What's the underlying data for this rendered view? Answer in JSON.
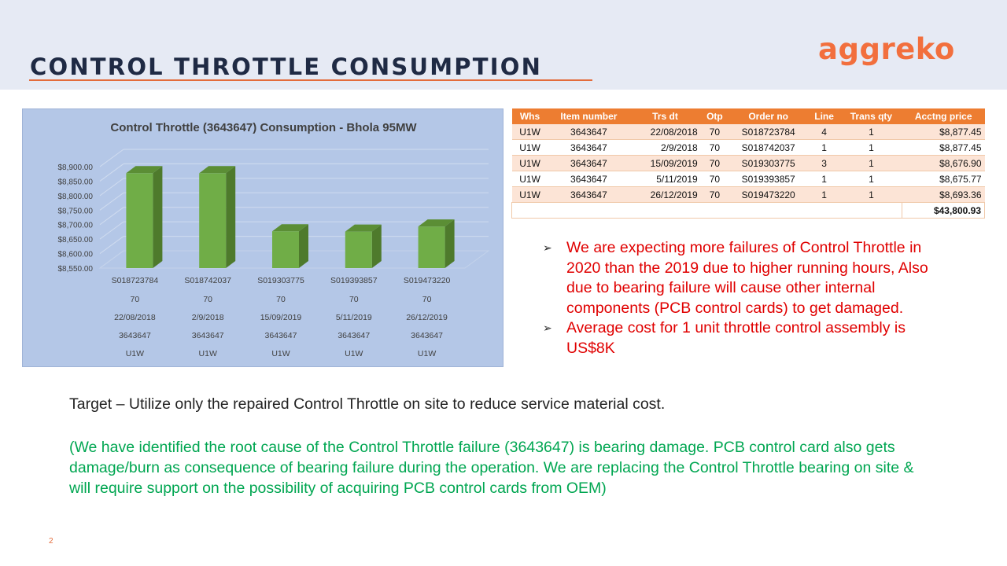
{
  "slide": {
    "title": "CONTROL THROTTLE CONSUMPTION",
    "logo_text": "aggreko",
    "page_number": "2",
    "accent_color": "#ed7d31",
    "title_color": "#1f2a44",
    "header_background": "#e6eaf4"
  },
  "chart_data": {
    "type": "bar",
    "title": "Control Throttle (3643647) Consumption - Bhola 95MW",
    "xlabel": "",
    "ylabel": "",
    "ylim": [
      8550,
      8900
    ],
    "yticks": [
      "$8,550.00",
      "$8,600.00",
      "$8,650.00",
      "$8,700.00",
      "$8,750.00",
      "$8,800.00",
      "$8,850.00",
      "$8,900.00"
    ],
    "category_levels": [
      [
        "S018723784",
        "S018742037",
        "S019303775",
        "S019393857",
        "S019473220"
      ],
      [
        "70",
        "70",
        "70",
        "70",
        "70"
      ],
      [
        "22/08/2018",
        "2/9/2018",
        "15/09/2019",
        "5/11/2019",
        "26/12/2019"
      ],
      [
        "3643647",
        "3643647",
        "3643647",
        "3643647",
        "3643647"
      ],
      [
        "U1W",
        "U1W",
        "U1W",
        "U1W",
        "U1W"
      ]
    ],
    "values": [
      8877.45,
      8877.45,
      8676.9,
      8675.77,
      8693.36
    ],
    "grid": true,
    "bar_color": "#70ad47",
    "background": "#b4c7e7"
  },
  "table": {
    "headers": [
      "Whs",
      "Item number",
      "Trs dt",
      "Otp",
      "Order no",
      "Line",
      "Trans qty",
      "Acctng price"
    ],
    "rows": [
      [
        "U1W",
        "3643647",
        "22/08/2018",
        "70",
        "S018723784",
        "4",
        "1",
        "$8,877.45"
      ],
      [
        "U1W",
        "3643647",
        "2/9/2018",
        "70",
        "S018742037",
        "1",
        "1",
        "$8,877.45"
      ],
      [
        "U1W",
        "3643647",
        "15/09/2019",
        "70",
        "S019303775",
        "3",
        "1",
        "$8,676.90"
      ],
      [
        "U1W",
        "3643647",
        "5/11/2019",
        "70",
        "S019393857",
        "1",
        "1",
        "$8,675.77"
      ],
      [
        "U1W",
        "3643647",
        "26/12/2019",
        "70",
        "S019473220",
        "1",
        "1",
        "$8,693.36"
      ]
    ],
    "total": "$43,800.93"
  },
  "bullets": [
    "We are expecting more failures of Control Throttle in 2020 than the 2019 due to higher running hours, Also due to bearing failure will cause other internal components (PCB control cards) to get damaged.",
    "Average cost for 1 unit throttle control assembly is US$8K"
  ],
  "target_text": "Target – Utilize only the repaired Control Throttle on site to reduce service material cost.",
  "note_text": "(We have identified the root cause of the Control Throttle failure (3643647)  is bearing damage. PCB control card also gets damage/burn as consequence of bearing failure during the operation. We are replacing the Control Throttle bearing on site & will require support on the possibility of acquiring PCB control cards from OEM)"
}
